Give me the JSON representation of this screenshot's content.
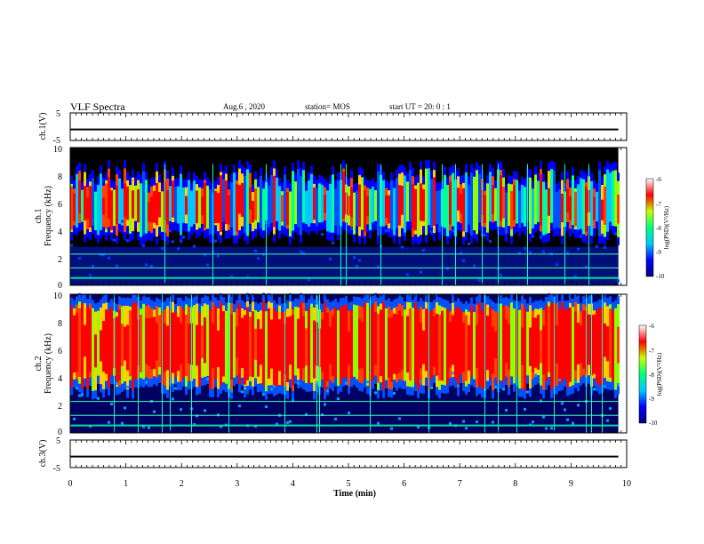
{
  "header": {
    "title": "VLF Spectra",
    "date": "Aug.6 , 2020",
    "station": "station= MOS",
    "start_ut": "start UT = 20: 0 : 1"
  },
  "chart_data": {
    "type": "heatmap",
    "xlabel": "Time (min)",
    "x_ticks": [
      0,
      1,
      2,
      3,
      4,
      5,
      6,
      7,
      8,
      9,
      10
    ],
    "xlim": [
      0,
      10
    ],
    "data_end_min": 9.85,
    "panels": [
      {
        "kind": "line",
        "ylabel": "ch.1(V)",
        "ylim": [
          -5,
          5
        ],
        "y_ticks": [
          5,
          -5
        ],
        "value": -1
      },
      {
        "kind": "spectrogram",
        "ylabel_channel": "ch.1",
        "ylabel": "Frequency (kHz)",
        "ylim": [
          0,
          10
        ],
        "y_ticks": [
          0,
          2,
          4,
          6,
          8,
          10
        ],
        "band_khz": [
          3.5,
          8.5
        ],
        "colorbar": {
          "label": "log(PSD)(V²/Hz)",
          "ticks": [
            -6,
            -7,
            -8,
            -9,
            -10
          ]
        }
      },
      {
        "kind": "spectrogram",
        "ylabel_channel": "ch.2",
        "ylabel": "Frequency (kHz)",
        "ylim": [
          0,
          10
        ],
        "y_ticks": [
          0,
          2,
          4,
          6,
          8,
          10
        ],
        "band_khz": [
          3.0,
          9.5
        ],
        "colorbar": {
          "label": "log(PSD)(V²/Hz)",
          "ticks": [
            -6,
            -7,
            -8,
            -9,
            -10
          ]
        }
      },
      {
        "kind": "line",
        "ylabel": "ch.3(V)",
        "ylim": [
          -5,
          5
        ],
        "y_ticks": [
          5,
          -5
        ],
        "value": -1
      }
    ],
    "colormap": [
      "#000080",
      "#0000ff",
      "#00c8ff",
      "#00ff80",
      "#c8ff00",
      "#ff0000",
      "#ffffff"
    ]
  }
}
